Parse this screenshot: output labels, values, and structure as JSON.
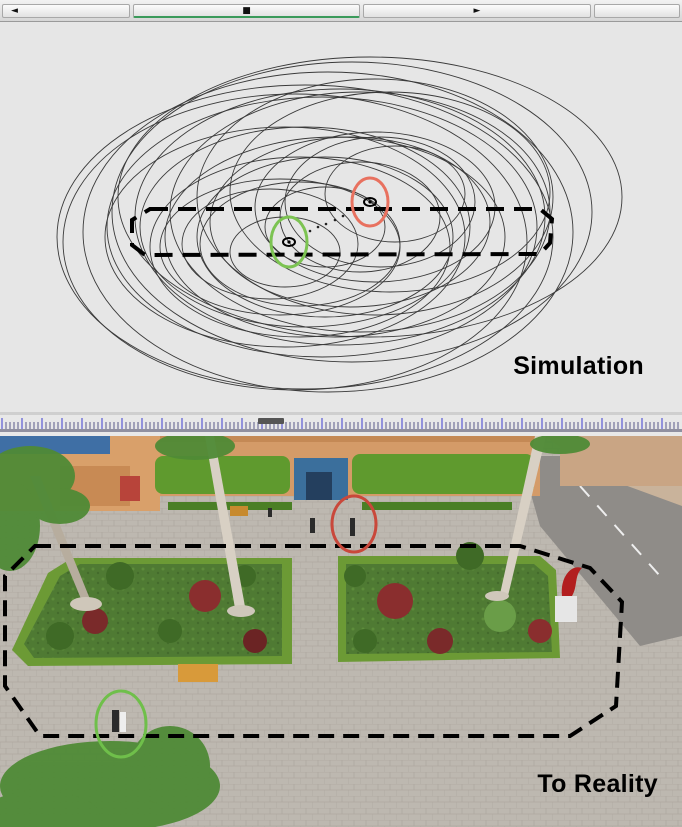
{
  "toolbar": {
    "prev_glyph": "◄",
    "stop_glyph": "■",
    "play_glyph": "►"
  },
  "simulation": {
    "label": "Simulation",
    "colors": {
      "background": "#e6e6e6",
      "orbit": "#3a3a3a",
      "path": "#000000",
      "marker_red": "#e8715f",
      "marker_green": "#7cc352"
    }
  },
  "reality": {
    "label": "To Reality",
    "colors": {
      "pavement": "#b9b4ad",
      "lawn": "#4f7a33",
      "hedge": "#5f9a2e",
      "building": "#d9a06a",
      "path": "#000000",
      "marker_red": "#c9483b",
      "marker_green": "#6fbf4a"
    }
  },
  "icons": [
    "rewind-icon",
    "stop-icon",
    "play-icon"
  ]
}
